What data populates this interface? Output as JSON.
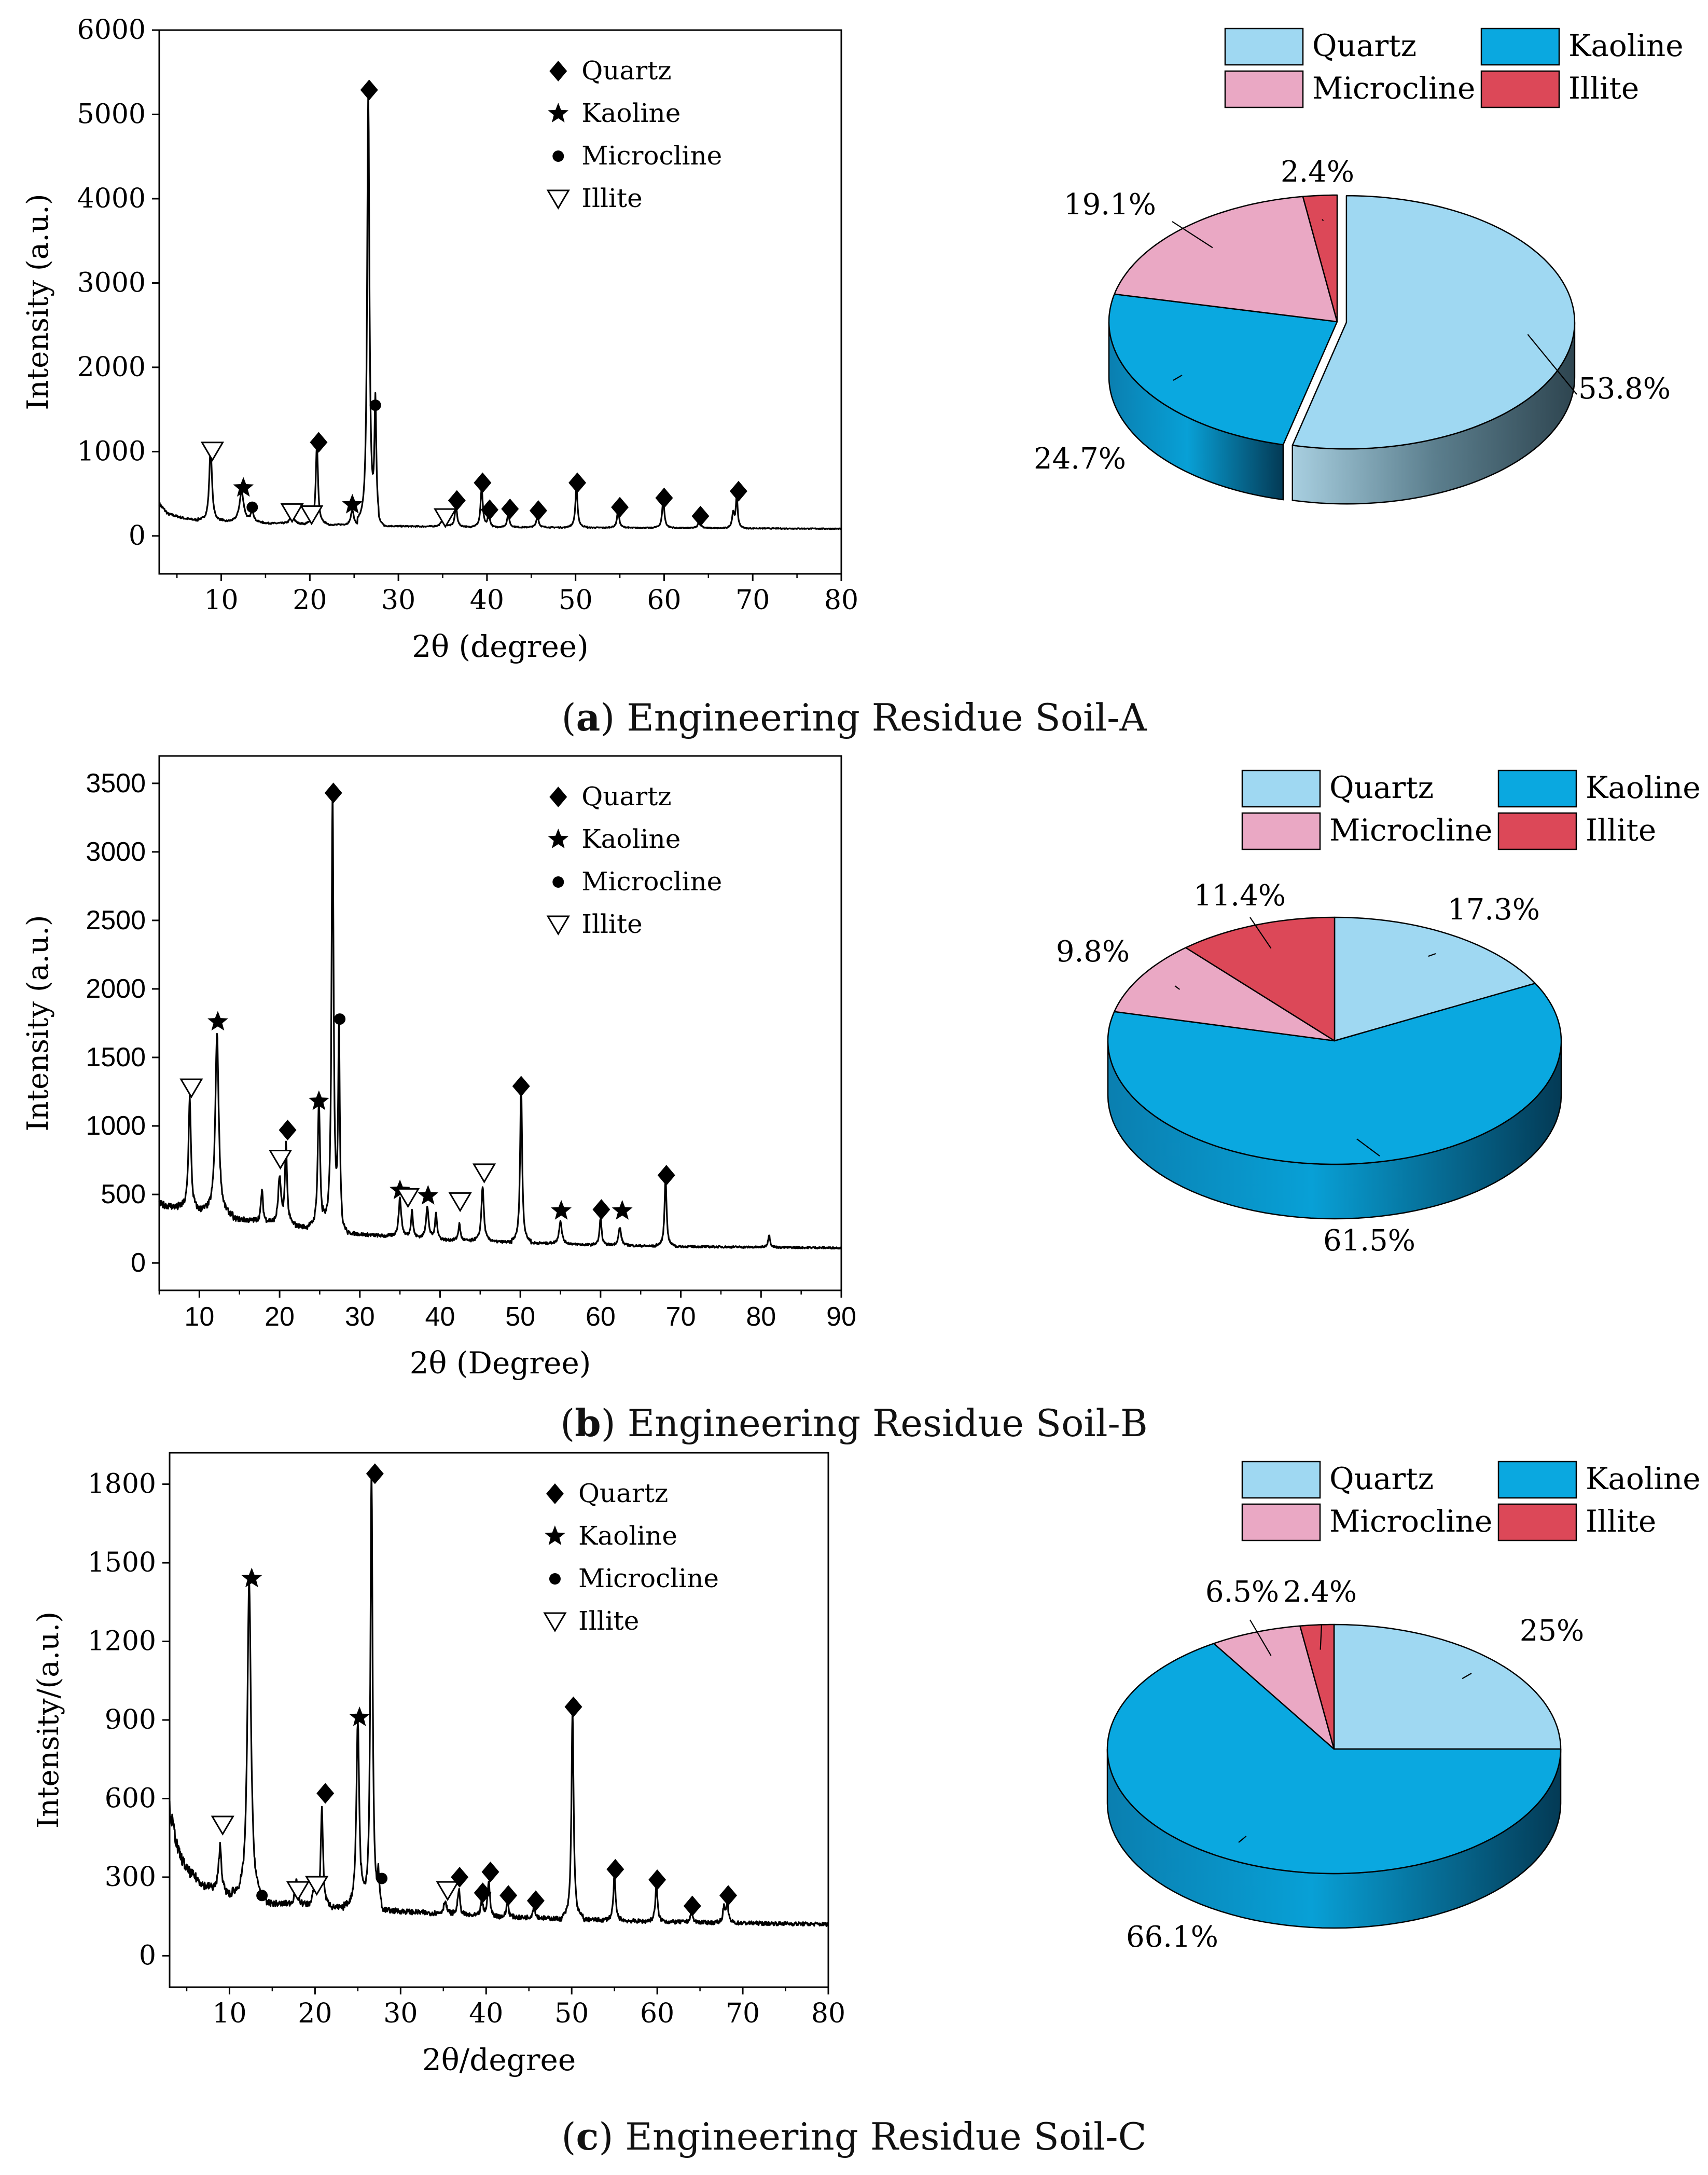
{
  "colors": {
    "quartz": "#9fd8f2",
    "kaoline": "#0aa8e0",
    "microcline": "#eaa8c4",
    "illite": "#dc4858",
    "axis": "#000000"
  },
  "chart_data": [
    {
      "type": "line",
      "xlabel": "2θ (degree)",
      "ylabel": "Intensity (a.u.)",
      "xlim": [
        3,
        80
      ],
      "ylim": [
        -450,
        6000
      ],
      "xticks": [
        10,
        20,
        30,
        40,
        50,
        60,
        70,
        80
      ],
      "yticks": [
        0,
        1000,
        2000,
        3000,
        4000,
        5000,
        6000
      ],
      "ytick_style": "plain",
      "legend": {
        "placement": "top-right",
        "entries": [
          "Quartz",
          "Kaoline",
          "Microcline",
          "Illite"
        ],
        "icons": [
          "diamond",
          "star",
          "circle",
          "triangle-down"
        ]
      },
      "baseline": [
        [
          3,
          380
        ],
        [
          4,
          260
        ],
        [
          6,
          205
        ],
        [
          8,
          180
        ],
        [
          12,
          160
        ],
        [
          20,
          140
        ],
        [
          30,
          115
        ],
        [
          40,
          105
        ],
        [
          60,
          95
        ],
        [
          80,
          85
        ]
      ],
      "peaks": [
        [
          8.8,
          880,
          0.18
        ],
        [
          12.3,
          360,
          0.3
        ],
        [
          13.5,
          130,
          0.2
        ],
        [
          18,
          150,
          0.2
        ],
        [
          20.8,
          950,
          0.15
        ],
        [
          24.8,
          180,
          0.2
        ],
        [
          26.6,
          5150,
          0.15
        ],
        [
          27.4,
          1400,
          0.12
        ],
        [
          35,
          80,
          0.25
        ],
        [
          36.5,
          250,
          0.15
        ],
        [
          39.4,
          460,
          0.15
        ],
        [
          40.2,
          180,
          0.12
        ],
        [
          42.4,
          160,
          0.15
        ],
        [
          45.7,
          140,
          0.15
        ],
        [
          50.1,
          470,
          0.15
        ],
        [
          54.8,
          200,
          0.15
        ],
        [
          59.9,
          330,
          0.15
        ],
        [
          64,
          110,
          0.15
        ],
        [
          67.8,
          180,
          0.15
        ],
        [
          68.2,
          380,
          0.12
        ]
      ],
      "markers": [
        {
          "x": 9.0,
          "y": 1010,
          "m": "triangle-down"
        },
        {
          "x": 12.5,
          "y": 570,
          "m": "star"
        },
        {
          "x": 13.5,
          "y": 340,
          "m": "circle"
        },
        {
          "x": 18.0,
          "y": 280,
          "m": "triangle-down"
        },
        {
          "x": 20.2,
          "y": 255,
          "m": "triangle-down"
        },
        {
          "x": 21.0,
          "y": 1110,
          "m": "diamond"
        },
        {
          "x": 24.8,
          "y": 370,
          "m": "star"
        },
        {
          "x": 26.7,
          "y": 5290,
          "m": "diamond"
        },
        {
          "x": 27.4,
          "y": 1550,
          "m": "circle"
        },
        {
          "x": 35.3,
          "y": 220,
          "m": "triangle-down"
        },
        {
          "x": 36.6,
          "y": 420,
          "m": "diamond"
        },
        {
          "x": 39.5,
          "y": 630,
          "m": "diamond"
        },
        {
          "x": 40.3,
          "y": 310,
          "m": "diamond"
        },
        {
          "x": 42.6,
          "y": 320,
          "m": "diamond"
        },
        {
          "x": 45.8,
          "y": 300,
          "m": "diamond"
        },
        {
          "x": 50.2,
          "y": 630,
          "m": "diamond"
        },
        {
          "x": 55.0,
          "y": 340,
          "m": "diamond"
        },
        {
          "x": 60.0,
          "y": 450,
          "m": "diamond"
        },
        {
          "x": 64.1,
          "y": 235,
          "m": "diamond"
        },
        {
          "x": 68.4,
          "y": 530,
          "m": "diamond"
        }
      ]
    },
    {
      "type": "pie",
      "slices": [
        {
          "label": "Quartz",
          "value": 53.8,
          "display": "53.8%"
        },
        {
          "label": "Kaoline",
          "value": 24.7,
          "display": "24.7%"
        },
        {
          "label": "Microcline",
          "value": 19.1,
          "display": "19.1%"
        },
        {
          "label": "Illite",
          "value": 2.4,
          "display": "2.4%"
        }
      ],
      "legend": {
        "placement": "top",
        "entries": [
          "Quartz",
          "Kaoline",
          "Microcline",
          "Illite"
        ]
      },
      "explode": "Quartz"
    },
    {
      "type": "line",
      "xlabel": "2θ (Degree)",
      "ylabel": "Intensity (a.u.)",
      "xlim": [
        5,
        90
      ],
      "ylim": [
        -200,
        3700
      ],
      "xticks": [
        10,
        20,
        30,
        40,
        50,
        60,
        70,
        80,
        90
      ],
      "yticks": [
        0,
        500,
        1000,
        1500,
        2000,
        2500,
        3000,
        3500
      ],
      "ytick_style": "sans",
      "legend": {
        "placement": "top-right",
        "entries": [
          "Quartz",
          "Kaoline",
          "Microcline",
          "Illite"
        ],
        "icons": [
          "diamond",
          "star",
          "circle",
          "triangle-down"
        ]
      },
      "baseline": [
        [
          5,
          430
        ],
        [
          7,
          410
        ],
        [
          10,
          380
        ],
        [
          15,
          320
        ],
        [
          20,
          290
        ],
        [
          25,
          250
        ],
        [
          30,
          210
        ],
        [
          35,
          190
        ],
        [
          40,
          170
        ],
        [
          45,
          160
        ],
        [
          50,
          150
        ],
        [
          60,
          130
        ],
        [
          70,
          120
        ],
        [
          80,
          115
        ],
        [
          90,
          110
        ]
      ],
      "peaks": [
        [
          8.8,
          820,
          0.18
        ],
        [
          12.2,
          1320,
          0.25
        ],
        [
          17.8,
          230,
          0.15
        ],
        [
          20,
          330,
          0.2
        ],
        [
          20.8,
          580,
          0.15
        ],
        [
          24.9,
          930,
          0.18
        ],
        [
          26.6,
          3200,
          0.15
        ],
        [
          27.4,
          1450,
          0.12
        ],
        [
          35,
          280,
          0.2
        ],
        [
          36.5,
          200,
          0.15
        ],
        [
          38.4,
          230,
          0.2
        ],
        [
          39.5,
          190,
          0.15
        ],
        [
          42.4,
          120,
          0.15
        ],
        [
          45.3,
          400,
          0.18
        ],
        [
          50.1,
          1160,
          0.15
        ],
        [
          55,
          170,
          0.2
        ],
        [
          60,
          200,
          0.15
        ],
        [
          62.4,
          130,
          0.2
        ],
        [
          68.1,
          500,
          0.15
        ],
        [
          81,
          90,
          0.15
        ]
      ],
      "markers": [
        {
          "x": 9.0,
          "y": 1280,
          "m": "triangle-down"
        },
        {
          "x": 12.3,
          "y": 1760,
          "m": "star"
        },
        {
          "x": 20.1,
          "y": 760,
          "m": "triangle-down"
        },
        {
          "x": 21.0,
          "y": 970,
          "m": "diamond"
        },
        {
          "x": 24.9,
          "y": 1180,
          "m": "star"
        },
        {
          "x": 26.7,
          "y": 3430,
          "m": "diamond"
        },
        {
          "x": 27.5,
          "y": 1780,
          "m": "circle"
        },
        {
          "x": 35.0,
          "y": 530,
          "m": "star"
        },
        {
          "x": 36.0,
          "y": 480,
          "m": "triangle-down"
        },
        {
          "x": 38.5,
          "y": 490,
          "m": "star"
        },
        {
          "x": 42.5,
          "y": 450,
          "m": "triangle-down"
        },
        {
          "x": 45.5,
          "y": 660,
          "m": "triangle-down"
        },
        {
          "x": 50.1,
          "y": 1290,
          "m": "diamond"
        },
        {
          "x": 55.1,
          "y": 380,
          "m": "star"
        },
        {
          "x": 60.1,
          "y": 390,
          "m": "diamond"
        },
        {
          "x": 62.7,
          "y": 380,
          "m": "star"
        },
        {
          "x": 68.2,
          "y": 640,
          "m": "diamond"
        }
      ]
    },
    {
      "type": "pie",
      "slices": [
        {
          "label": "Quartz",
          "value": 17.3,
          "display": "17.3%"
        },
        {
          "label": "Kaoline",
          "value": 61.5,
          "display": "61.5%"
        },
        {
          "label": "Microcline",
          "value": 9.8,
          "display": "9.8%"
        },
        {
          "label": "Illite",
          "value": 11.4,
          "display": "11.4%"
        }
      ],
      "legend": {
        "placement": "top",
        "entries": [
          "Quartz",
          "Kaoline",
          "Microcline",
          "Illite"
        ]
      },
      "explode": ""
    },
    {
      "type": "line",
      "xlabel": "2θ/degree",
      "ylabel": "Intensity/(a.u.)",
      "xlim": [
        3,
        80
      ],
      "ylim": [
        -120,
        1920
      ],
      "xticks": [
        10,
        20,
        30,
        40,
        50,
        60,
        70,
        80
      ],
      "yticks": [
        0,
        300,
        600,
        900,
        1200,
        1500,
        1800
      ],
      "ytick_style": "plain",
      "legend": {
        "placement": "top-right",
        "entries": [
          "Quartz",
          "Kaoline",
          "Microcline",
          "Illite"
        ],
        "icons": [
          "diamond",
          "star",
          "circle",
          "triangle-down"
        ]
      },
      "baseline": [
        [
          3,
          560
        ],
        [
          4,
          400
        ],
        [
          5,
          330
        ],
        [
          7,
          270
        ],
        [
          9,
          240
        ],
        [
          11,
          220
        ],
        [
          15,
          200
        ],
        [
          20,
          190
        ],
        [
          30,
          170
        ],
        [
          40,
          150
        ],
        [
          50,
          140
        ],
        [
          60,
          130
        ],
        [
          70,
          125
        ],
        [
          80,
          120
        ]
      ],
      "peaks": [
        [
          8.9,
          180,
          0.2
        ],
        [
          12.3,
          1220,
          0.25
        ],
        [
          17.8,
          90,
          0.2
        ],
        [
          20,
          100,
          0.2
        ],
        [
          20.8,
          380,
          0.15
        ],
        [
          25,
          720,
          0.2
        ],
        [
          26.6,
          1680,
          0.15
        ],
        [
          27.4,
          110,
          0.12
        ],
        [
          35.2,
          50,
          0.2
        ],
        [
          36.8,
          100,
          0.15
        ],
        [
          39.5,
          60,
          0.15
        ],
        [
          40.3,
          140,
          0.15
        ],
        [
          42.5,
          60,
          0.15
        ],
        [
          45.6,
          50,
          0.15
        ],
        [
          50.1,
          800,
          0.15
        ],
        [
          55,
          170,
          0.15
        ],
        [
          59.9,
          140,
          0.15
        ],
        [
          64,
          40,
          0.15
        ],
        [
          67.8,
          60,
          0.15
        ],
        [
          68.2,
          80,
          0.12
        ]
      ],
      "markers": [
        {
          "x": 9.2,
          "y": 500,
          "m": "triangle-down"
        },
        {
          "x": 12.6,
          "y": 1440,
          "m": "star"
        },
        {
          "x": 13.8,
          "y": 230,
          "m": "circle"
        },
        {
          "x": 18.0,
          "y": 250,
          "m": "triangle-down"
        },
        {
          "x": 20.2,
          "y": 270,
          "m": "triangle-down"
        },
        {
          "x": 21.2,
          "y": 620,
          "m": "diamond"
        },
        {
          "x": 25.2,
          "y": 910,
          "m": "star"
        },
        {
          "x": 27.0,
          "y": 1840,
          "m": "diamond"
        },
        {
          "x": 27.8,
          "y": 295,
          "m": "circle"
        },
        {
          "x": 35.5,
          "y": 250,
          "m": "triangle-down"
        },
        {
          "x": 36.9,
          "y": 300,
          "m": "diamond"
        },
        {
          "x": 39.6,
          "y": 240,
          "m": "diamond"
        },
        {
          "x": 40.5,
          "y": 320,
          "m": "diamond"
        },
        {
          "x": 42.6,
          "y": 230,
          "m": "diamond"
        },
        {
          "x": 45.8,
          "y": 210,
          "m": "diamond"
        },
        {
          "x": 50.2,
          "y": 950,
          "m": "diamond"
        },
        {
          "x": 55.1,
          "y": 330,
          "m": "diamond"
        },
        {
          "x": 60.0,
          "y": 290,
          "m": "diamond"
        },
        {
          "x": 64.1,
          "y": 190,
          "m": "diamond"
        },
        {
          "x": 68.3,
          "y": 230,
          "m": "diamond"
        }
      ]
    },
    {
      "type": "pie",
      "slices": [
        {
          "label": "Quartz",
          "value": 25,
          "display": "25%"
        },
        {
          "label": "Kaoline",
          "value": 66.1,
          "display": "66.1%"
        },
        {
          "label": "Microcline",
          "value": 6.5,
          "display": "6.5%"
        },
        {
          "label": "Illite",
          "value": 2.4,
          "display": "2.4%"
        }
      ],
      "legend": {
        "placement": "top",
        "entries": [
          "Quartz",
          "Kaoline",
          "Microcline",
          "Illite"
        ]
      },
      "explode": ""
    }
  ],
  "captions": [
    {
      "letter": "a",
      "text": "Engineering Residue Soil-A"
    },
    {
      "letter": "b",
      "text": "Engineering Residue Soil-B"
    },
    {
      "letter": "c",
      "text": "Engineering Residue Soil-C"
    }
  ]
}
